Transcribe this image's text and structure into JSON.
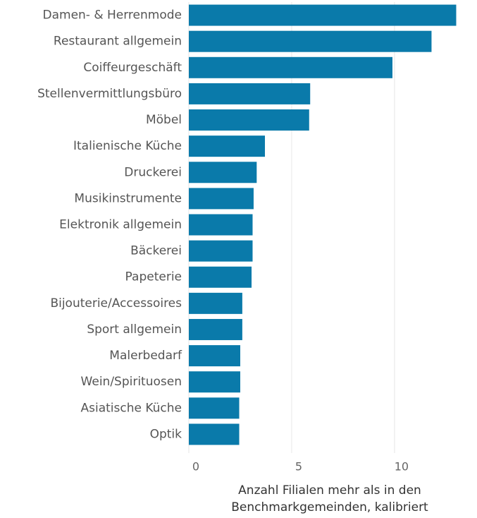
{
  "chart_data": {
    "type": "bar",
    "orientation": "horizontal",
    "x_label": "Anzahl Filialen mehr als in den Benchmarkgemeinden, kalibriert",
    "categories": [
      "Damen- & Herrenmode",
      "Restaurant allgemein",
      "Coiffeurgeschäft",
      "Stellenvermittlungsbüro",
      "Möbel",
      "Italienische Küche",
      "Druckerei",
      "Musikinstrumente",
      "Elektronik allgemein",
      "Bäckerei",
      "Papeterie",
      "Bijouterie/Accessoires",
      "Sport allgemein",
      "Malerbedarf",
      "Wein/Spirituosen",
      "Asiatische Küche",
      "Optik"
    ],
    "values": [
      13.0,
      11.8,
      9.9,
      5.9,
      5.85,
      3.7,
      3.3,
      3.15,
      3.1,
      3.1,
      3.05,
      2.6,
      2.6,
      2.5,
      2.5,
      2.45,
      2.45
    ],
    "color": "#0a7aaa",
    "xlim": [
      0,
      13.6
    ],
    "xticks": [
      0,
      5,
      10
    ],
    "grid": true
  }
}
